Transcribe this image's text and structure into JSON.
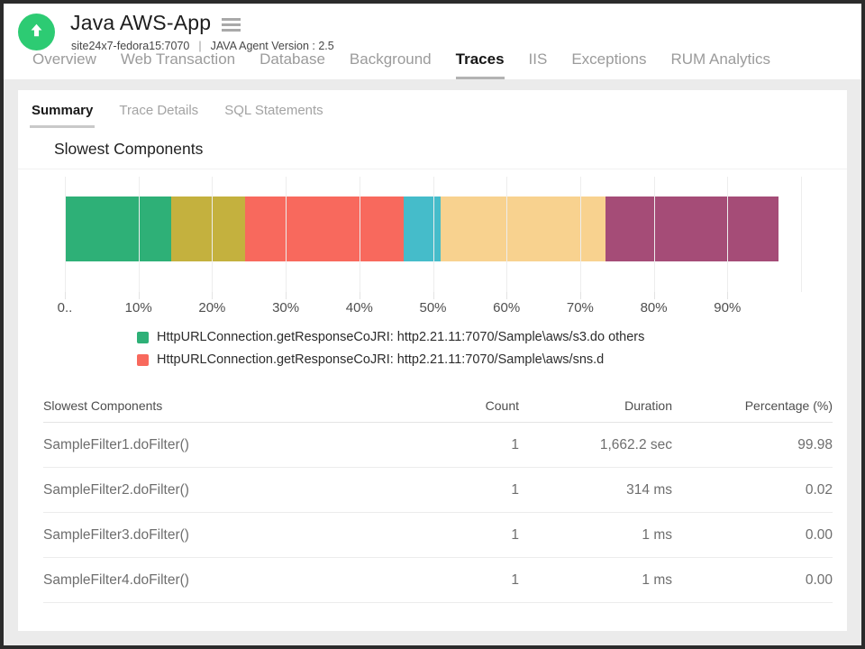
{
  "header": {
    "app_title": "Java AWS-App",
    "host": "site24x7-fedora15:7070",
    "separator": "|",
    "agent_version": "JAVA Agent Version : 2.5",
    "status_icon": "up-arrow-icon",
    "status_color": "#2dcb73"
  },
  "nav": {
    "items": [
      {
        "label": "Overview",
        "active": false
      },
      {
        "label": "Web Transaction",
        "active": false
      },
      {
        "label": "Database",
        "active": false
      },
      {
        "label": "Background",
        "active": false
      },
      {
        "label": "Traces",
        "active": true
      },
      {
        "label": "IIS",
        "active": false
      },
      {
        "label": "Exceptions",
        "active": false
      },
      {
        "label": "RUM Analytics",
        "active": false
      }
    ]
  },
  "subtabs": {
    "items": [
      {
        "label": "Summary",
        "active": true
      },
      {
        "label": "Trace Details",
        "active": false
      },
      {
        "label": "SQL Statements",
        "active": false
      }
    ]
  },
  "section_title": "Slowest Components",
  "chart_data": {
    "type": "bar",
    "variant": "horizontal-stacked-single-bar",
    "title": "Slowest Components",
    "xlim": [
      0,
      100
    ],
    "x_unit": "%",
    "x_tick_labels": [
      "0..",
      "10%",
      "20%",
      "30%",
      "40%",
      "50%",
      "60%",
      "70%",
      "80%",
      "90%"
    ],
    "grid": true,
    "legend_position": "bottom",
    "segments": [
      {
        "color": "#2eb077",
        "value": 14.5
      },
      {
        "color": "#c4b13e",
        "value": 10
      },
      {
        "color": "#f8695d",
        "value": 21.5
      },
      {
        "color": "#45bcca",
        "value": 5
      },
      {
        "color": "#f8d28f",
        "value": 22.5
      },
      {
        "color": "#a54c77",
        "value": 23.5
      }
    ],
    "legend": [
      {
        "color": "#2eb077",
        "label": "HttpURLConnection.getResponseCoJRI: http2.21.11:7070/Sample\\aws/s3.do others"
      },
      {
        "color": "#f8695d",
        "label": "HttpURLConnection.getResponseCoJRI: http2.21.11:7070/Sample\\aws/sns.d"
      }
    ]
  },
  "table": {
    "columns": [
      "Slowest Components",
      "Count",
      "Duration",
      "Percentage (%)"
    ],
    "rows": [
      {
        "component": "SampleFilter1.doFilter()",
        "count": "1",
        "duration": "1,662.2 sec",
        "percentage": "99.98"
      },
      {
        "component": "SampleFilter2.doFilter()",
        "count": "1",
        "duration": "314 ms",
        "percentage": "0.02"
      },
      {
        "component": "SampleFilter3.doFilter()",
        "count": "1",
        "duration": "1 ms",
        "percentage": "0.00"
      },
      {
        "component": "SampleFilter4.doFilter()",
        "count": "1",
        "duration": "1 ms",
        "percentage": "0.00"
      }
    ]
  }
}
